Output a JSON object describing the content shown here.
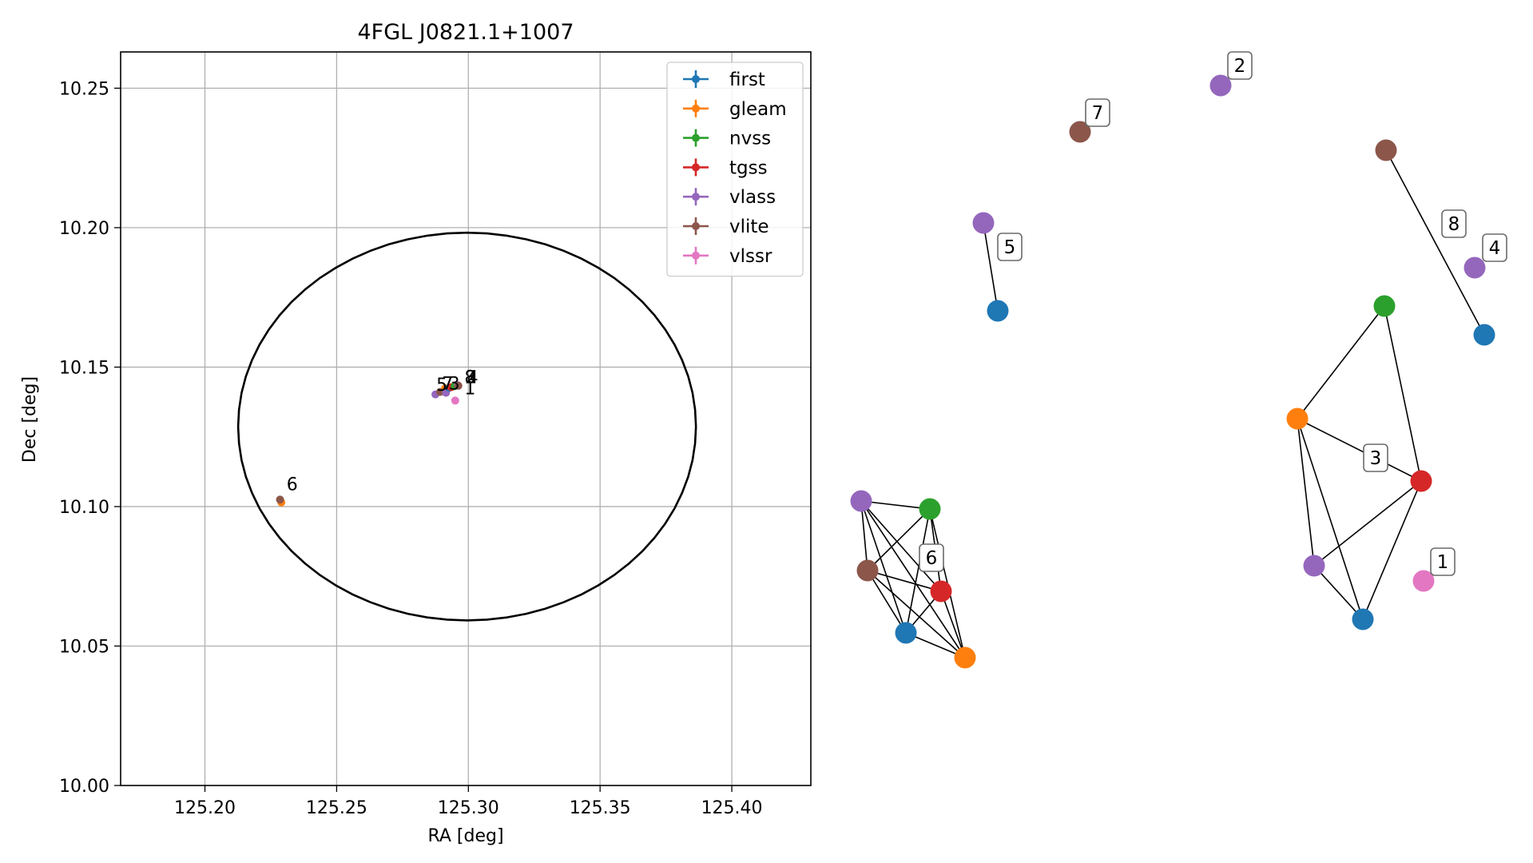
{
  "chart_data": [
    {
      "type": "scatter",
      "title": "4FGL J0821.1+1007",
      "xlabel": "RA [deg]",
      "ylabel": "Dec [deg]",
      "xlim": [
        125.168,
        125.43
      ],
      "ylim": [
        10.0,
        10.263
      ],
      "x_ticks": [
        125.2,
        125.25,
        125.3,
        125.35,
        125.4
      ],
      "x_tick_labels": [
        "125.20",
        "125.25",
        "125.30",
        "125.35",
        "125.40"
      ],
      "y_ticks": [
        10.0,
        10.05,
        10.1,
        10.15,
        10.2,
        10.25
      ],
      "y_tick_labels": [
        "10.00",
        "10.05",
        "10.10",
        "10.15",
        "10.20",
        "10.25"
      ],
      "grid": true,
      "legend_placement": "upper right",
      "legend": [
        {
          "name": "first",
          "color": "#1f77b4"
        },
        {
          "name": "gleam",
          "color": "#ff7f0e"
        },
        {
          "name": "nvss",
          "color": "#2ca02c"
        },
        {
          "name": "tgss",
          "color": "#d62728"
        },
        {
          "name": "vlass",
          "color": "#9467bd"
        },
        {
          "name": "vlite",
          "color": "#8c564b"
        },
        {
          "name": "vlssr",
          "color": "#e377c2"
        }
      ],
      "ellipse": {
        "center": [
          125.2995,
          10.1287
        ],
        "semi_axis_ra": 0.0869,
        "semi_axis_dec": 0.0695
      },
      "points": [
        {
          "catalog": "vlass",
          "ra": 125.2875,
          "dec": 10.1402
        },
        {
          "catalog": "vlite",
          "ra": 125.2893,
          "dec": 10.1411
        },
        {
          "catalog": "gleam",
          "ra": 125.2912,
          "dec": 10.1424
        },
        {
          "catalog": "vlass",
          "ra": 125.2915,
          "dec": 10.1408
        },
        {
          "catalog": "first",
          "ra": 125.2928,
          "dec": 10.1426
        },
        {
          "catalog": "tgss",
          "ra": 125.2935,
          "dec": 10.1428
        },
        {
          "catalog": "nvss",
          "ra": 125.2948,
          "dec": 10.1432
        },
        {
          "catalog": "vlass",
          "ra": 125.296,
          "dec": 10.1435
        },
        {
          "catalog": "vlite",
          "ra": 125.2962,
          "dec": 10.1433
        },
        {
          "catalog": "vlssr",
          "ra": 125.295,
          "dec": 10.138
        },
        {
          "catalog": "gleam",
          "ra": 125.229,
          "dec": 10.1015
        },
        {
          "catalog": "vlite",
          "ra": 125.2285,
          "dec": 10.1025
        }
      ],
      "point_labels": [
        {
          "text": "5",
          "ra": 125.2878,
          "dec": 10.1415
        },
        {
          "text": "7",
          "ra": 125.29,
          "dec": 10.142
        },
        {
          "text": "3",
          "ra": 125.2925,
          "dec": 10.142
        },
        {
          "text": "8",
          "ra": 125.2985,
          "dec": 10.1443
        },
        {
          "text": "2",
          "ra": 125.299,
          "dec": 10.1443
        },
        {
          "text": "4",
          "ra": 125.2995,
          "dec": 10.1443
        },
        {
          "text": "1",
          "ra": 125.2985,
          "dec": 10.1402
        },
        {
          "text": "6",
          "ra": 125.231,
          "dec": 10.1058
        }
      ]
    },
    {
      "type": "network",
      "title": "",
      "nodes": [
        {
          "id": "n2",
          "catalog": "vlass",
          "label": "2"
        },
        {
          "id": "n7",
          "catalog": "vlite",
          "label": "7"
        },
        {
          "id": "n5a",
          "catalog": "vlass",
          "label": "5"
        },
        {
          "id": "n5b",
          "catalog": "first",
          "label": ""
        },
        {
          "id": "n8a",
          "catalog": "vlite",
          "label": ""
        },
        {
          "id": "n8b",
          "catalog": "first",
          "label": ""
        },
        {
          "id": "n4",
          "catalog": "vlass",
          "label": "4"
        },
        {
          "id": "n1",
          "catalog": "vlssr",
          "label": "1"
        },
        {
          "id": "c3_nvss",
          "catalog": "nvss",
          "label": ""
        },
        {
          "id": "c3_gleam",
          "catalog": "gleam",
          "label": ""
        },
        {
          "id": "c3_tgss",
          "catalog": "tgss",
          "label": ""
        },
        {
          "id": "c3_vlass",
          "catalog": "vlass",
          "label": ""
        },
        {
          "id": "c3_first",
          "catalog": "first",
          "label": ""
        },
        {
          "id": "c6_vlass",
          "catalog": "vlass",
          "label": ""
        },
        {
          "id": "c6_nvss",
          "catalog": "nvss",
          "label": ""
        },
        {
          "id": "c6_vlite",
          "catalog": "vlite",
          "label": ""
        },
        {
          "id": "c6_tgss",
          "catalog": "tgss",
          "label": ""
        },
        {
          "id": "c6_first",
          "catalog": "first",
          "label": ""
        },
        {
          "id": "c6_gleam",
          "catalog": "gleam",
          "label": ""
        }
      ],
      "edges": [
        [
          "n5a",
          "n5b"
        ],
        [
          "n8a",
          "n8b"
        ],
        [
          "c3_nvss",
          "c3_gleam"
        ],
        [
          "c3_nvss",
          "c3_tgss"
        ],
        [
          "c3_gleam",
          "c3_tgss"
        ],
        [
          "c3_gleam",
          "c3_vlass"
        ],
        [
          "c3_gleam",
          "c3_first"
        ],
        [
          "c3_tgss",
          "c3_vlass"
        ],
        [
          "c3_tgss",
          "c3_first"
        ],
        [
          "c3_vlass",
          "c3_first"
        ],
        [
          "c6_vlass",
          "c6_nvss"
        ],
        [
          "c6_vlass",
          "c6_vlite"
        ],
        [
          "c6_vlass",
          "c6_tgss"
        ],
        [
          "c6_vlass",
          "c6_first"
        ],
        [
          "c6_vlass",
          "c6_gleam"
        ],
        [
          "c6_nvss",
          "c6_vlite"
        ],
        [
          "c6_nvss",
          "c6_tgss"
        ],
        [
          "c6_nvss",
          "c6_first"
        ],
        [
          "c6_nvss",
          "c6_gleam"
        ],
        [
          "c6_vlite",
          "c6_tgss"
        ],
        [
          "c6_vlite",
          "c6_first"
        ],
        [
          "c6_vlite",
          "c6_gleam"
        ],
        [
          "c6_tgss",
          "c6_first"
        ],
        [
          "c6_tgss",
          "c6_gleam"
        ],
        [
          "c6_first",
          "c6_gleam"
        ]
      ],
      "cluster_labels": [
        "8",
        "3",
        "6"
      ]
    }
  ]
}
